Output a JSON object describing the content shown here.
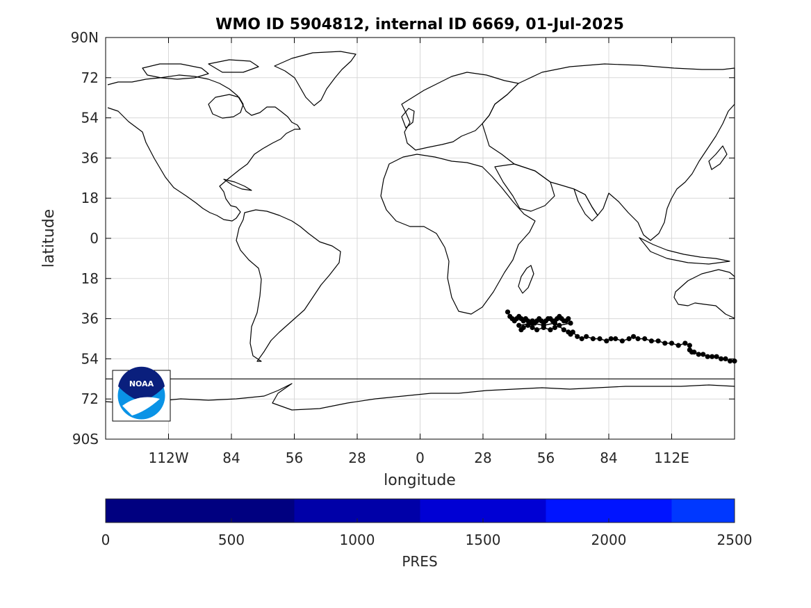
{
  "title": "WMO ID 5904812, internal ID 6669, 01-Jul-2025",
  "map": {
    "xlabel": "longitude",
    "ylabel": "latitude",
    "lon_range": [
      -140,
      140
    ],
    "lat_range": [
      -90,
      90
    ],
    "x_ticks": [
      {
        "value": -112,
        "label": "112W"
      },
      {
        "value": -84,
        "label": "84"
      },
      {
        "value": -56,
        "label": "56"
      },
      {
        "value": -28,
        "label": "28"
      },
      {
        "value": 0,
        "label": "0"
      },
      {
        "value": 28,
        "label": "28"
      },
      {
        "value": 56,
        "label": "56"
      },
      {
        "value": 84,
        "label": "84"
      },
      {
        "value": 112,
        "label": "112E"
      }
    ],
    "y_ticks": [
      {
        "value": 90,
        "label": "90N"
      },
      {
        "value": 72,
        "label": "72"
      },
      {
        "value": 54,
        "label": "54"
      },
      {
        "value": 36,
        "label": "36"
      },
      {
        "value": 18,
        "label": "18"
      },
      {
        "value": 0,
        "label": "0"
      },
      {
        "value": -18,
        "label": "18"
      },
      {
        "value": -36,
        "label": "36"
      },
      {
        "value": -54,
        "label": "54"
      },
      {
        "value": -72,
        "label": "72"
      },
      {
        "value": -90,
        "label": "90S"
      }
    ],
    "grid": true,
    "antarctic_line_lat": -63,
    "logo": {
      "text": "NOAA",
      "position": "bottom-left"
    },
    "colors": {
      "land_outline": "#000000",
      "track": "#000000",
      "grid": "#d8d8d8",
      "logo_dark": "#0a1f7d",
      "logo_light": "#0a93e6"
    }
  },
  "chart_data": {
    "type": "scatter",
    "series": [
      {
        "x": [
          39,
          40,
          41,
          42,
          43,
          44,
          45,
          46,
          47,
          48,
          49,
          50,
          51,
          52,
          53,
          54,
          55,
          56,
          57,
          58,
          59,
          60,
          61,
          62,
          63,
          64,
          65,
          66,
          67,
          62,
          60,
          58,
          55,
          52,
          50,
          48,
          46,
          45,
          44,
          50,
          55,
          60,
          64,
          66,
          67,
          68,
          70,
          72,
          74,
          77,
          80,
          83,
          85,
          87,
          90,
          93,
          95,
          97,
          100,
          103,
          106,
          109,
          112,
          115,
          118,
          120,
          120,
          121,
          122,
          124,
          126,
          128,
          130,
          132,
          134,
          136,
          138,
          140
        ],
        "y": [
          -33,
          -35,
          -36,
          -37,
          -36,
          -35,
          -36,
          -37,
          -36,
          -37,
          -38,
          -37,
          -38,
          -37,
          -36,
          -37,
          -38,
          -37,
          -36,
          -36,
          -37,
          -37,
          -36,
          -35,
          -36,
          -37,
          -37,
          -36,
          -38,
          -39,
          -40,
          -41,
          -40,
          -41,
          -40,
          -39,
          -40,
          -41,
          -39,
          -38,
          -39,
          -38,
          -41,
          -42,
          -43,
          -42,
          -44,
          -45,
          -44,
          -45,
          -45,
          -46,
          -45,
          -45,
          -46,
          -45,
          -44,
          -45,
          -45,
          -46,
          -46,
          -47,
          -47,
          -48,
          -47,
          -48,
          -50,
          -51,
          -51,
          -52,
          -52,
          -53,
          -53,
          -53,
          -54,
          -54,
          -55,
          -55
        ]
      }
    ]
  },
  "colorbar": {
    "label": "PRES",
    "ticks": [
      0,
      500,
      1000,
      1500,
      2000,
      2500
    ],
    "segments": [
      {
        "from": 0,
        "to": 750,
        "color": "#000080"
      },
      {
        "from": 750,
        "to": 1250,
        "color": "#0000a8"
      },
      {
        "from": 1250,
        "to": 1750,
        "color": "#0000d4"
      },
      {
        "from": 1750,
        "to": 2250,
        "color": "#0014ff"
      },
      {
        "from": 2250,
        "to": 2500,
        "color": "#0038ff"
      }
    ]
  }
}
